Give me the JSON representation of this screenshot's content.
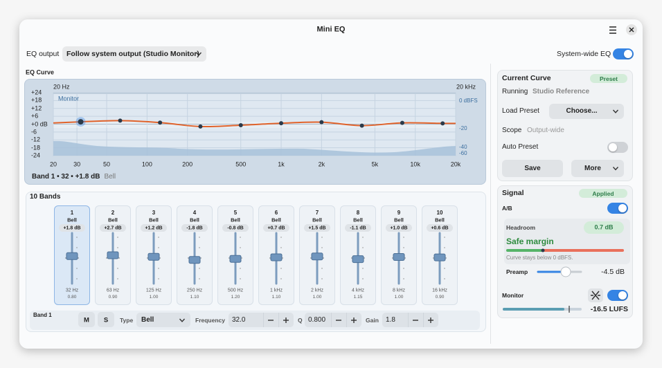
{
  "window": {
    "title": "Mini EQ"
  },
  "toolbar": {
    "output_label": "EQ output",
    "output_device": "Follow system output (Studio Monitor)",
    "system_wide_label": "System-wide EQ",
    "system_wide_on": true
  },
  "chart_data": {
    "type": "line",
    "title": "EQ Curve",
    "x_start_label": "20 Hz",
    "x_end_label": "20 kHz",
    "overlay_label": "Monitor",
    "xlim": [
      20,
      20000
    ],
    "ylim": [
      -24,
      24
    ],
    "log_x": true,
    "grid": true,
    "color": "#e0622a",
    "xticks": [
      20,
      30,
      50,
      100,
      200,
      500,
      {
        "value": 1000,
        "label": "1k"
      },
      {
        "value": 2000,
        "label": "2k"
      },
      {
        "value": 5000,
        "label": "5k"
      },
      {
        "value": 10000,
        "label": "10k"
      },
      {
        "value": 20000,
        "label": "20k"
      }
    ],
    "yticks": [
      {
        "value": 24,
        "label": "+24"
      },
      {
        "value": 18,
        "label": "+18"
      },
      {
        "value": 12,
        "label": "+12"
      },
      {
        "value": 6,
        "label": "+6"
      },
      {
        "value": 0,
        "label": "+0 dB"
      },
      -6,
      -12,
      -18,
      -24
    ],
    "spectrum_labels": [
      "0 dBFS",
      "-20",
      "-40",
      "-60"
    ],
    "selection_summary": "Band 1 • 32 • +1.8 dB",
    "selection_type": "Bell"
  },
  "bands": {
    "title": "10 Bands",
    "selected": 0,
    "items": [
      {
        "number": 1,
        "type": "Bell",
        "gain": 1.8,
        "gain_label": "+1.8 dB",
        "freq": 32,
        "freq_label": "32 Hz",
        "q": "0.80"
      },
      {
        "number": 2,
        "type": "Bell",
        "gain": 2.7,
        "gain_label": "+2.7 dB",
        "freq": 63,
        "freq_label": "63 Hz",
        "q": "0.90"
      },
      {
        "number": 3,
        "type": "Bell",
        "gain": 1.2,
        "gain_label": "+1.2 dB",
        "freq": 125,
        "freq_label": "125 Hz",
        "q": "1.00"
      },
      {
        "number": 4,
        "type": "Bell",
        "gain": -1.8,
        "gain_label": "-1.8 dB",
        "freq": 250,
        "freq_label": "250 Hz",
        "q": "1.10"
      },
      {
        "number": 5,
        "type": "Bell",
        "gain": -0.8,
        "gain_label": "-0.8 dB",
        "freq": 500,
        "freq_label": "500 Hz",
        "q": "1.20"
      },
      {
        "number": 6,
        "type": "Bell",
        "gain": 0.7,
        "gain_label": "+0.7 dB",
        "freq": 1000,
        "freq_label": "1 kHz",
        "q": "1.10"
      },
      {
        "number": 7,
        "type": "Bell",
        "gain": 1.5,
        "gain_label": "+1.5 dB",
        "freq": 2000,
        "freq_label": "2 kHz",
        "q": "1.00"
      },
      {
        "number": 8,
        "type": "Bell",
        "gain": -1.1,
        "gain_label": "-1.1 dB",
        "freq": 4000,
        "freq_label": "4 kHz",
        "q": "1.15"
      },
      {
        "number": 9,
        "type": "Bell",
        "gain": 1.0,
        "gain_label": "+1.0 dB",
        "freq": 8000,
        "freq_label": "8 kHz",
        "q": "1.00"
      },
      {
        "number": 10,
        "type": "Bell",
        "gain": 0.6,
        "gain_label": "+0.6 dB",
        "freq": 16000,
        "freq_label": "16 kHz",
        "q": "0.90"
      }
    ]
  },
  "band_editor": {
    "title": "Band 1",
    "mute": "M",
    "solo": "S",
    "type_label": "Type",
    "type": "Bell",
    "freq_label": "Frequency",
    "freq": "32.0",
    "q_label": "Q",
    "q": "0.800",
    "gain_label": "Gain",
    "gain": "1.8"
  },
  "current_curve": {
    "title": "Current Curve",
    "badge": "Preset",
    "running_label": "Running",
    "running": "Studio Reference",
    "load_label": "Load Preset",
    "load_button": "Choose...",
    "scope_label": "Scope",
    "scope": "Output-wide",
    "auto_label": "Auto Preset",
    "auto_on": false,
    "save": "Save",
    "more": "More"
  },
  "signal": {
    "title": "Signal",
    "badge": "Applied",
    "ab_label": "A/B",
    "ab_on": true,
    "headroom_label": "Headroom",
    "headroom": "0.7 dB",
    "status": "Safe margin",
    "note": "Curve stays below 0 dBFS.",
    "preamp_label": "Preamp",
    "preamp": "-4.5 dB",
    "monitor_label": "Monitor",
    "monitor_on": true,
    "loudness": "-16.5 LUFS"
  }
}
